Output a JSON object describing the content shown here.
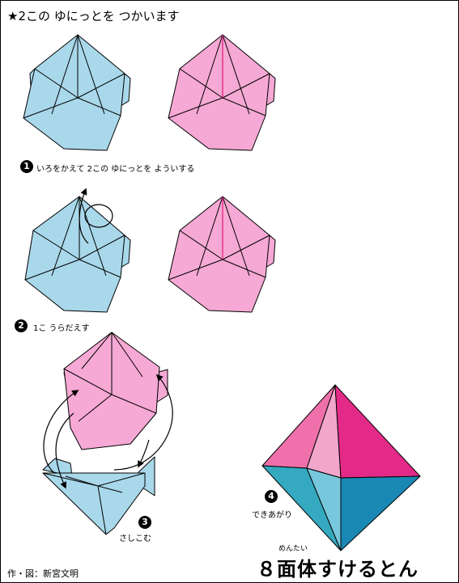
{
  "header": {
    "title": "★2この ゆにっとを つかいます"
  },
  "steps": [
    {
      "number": "1",
      "caption": "いろをかえて 2この ゆにっとを よういする"
    },
    {
      "number": "2",
      "caption": "1こ うらだえす"
    },
    {
      "number": "3",
      "caption": "さしこむ"
    },
    {
      "number": "4",
      "caption": "できあがり"
    }
  ],
  "result": {
    "ruby": "めんたい",
    "name": "８面体すけるとん"
  },
  "credit": "作・図：新宮文明",
  "colors": {
    "blue_unit": "#a9d8ea",
    "pink_unit": "#f5a9d4",
    "crease_pink": "#e0207d",
    "oct_dark_pink": "#e42a88",
    "oct_mid_pink": "#ef70ab",
    "oct_light_pink": "#f2a6cc",
    "oct_teal": "#35a9c0",
    "oct_dark_blue": "#1a88b4",
    "oct_light_blue": "#78c8dd"
  }
}
